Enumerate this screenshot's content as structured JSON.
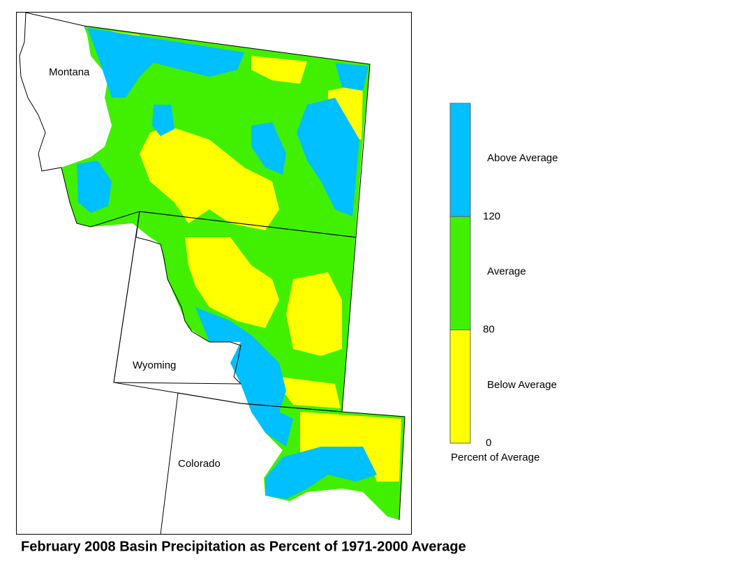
{
  "map": {
    "labels": [
      "Montana",
      "Wyoming",
      "Colorado"
    ]
  },
  "legend": {
    "bands": [
      {
        "label": "Above Average",
        "color": "#00c0ff"
      },
      {
        "label": "Average",
        "color": "#40f000"
      },
      {
        "label": "Below Average",
        "color": "#ffff00"
      }
    ],
    "ticks": [
      120,
      80,
      0
    ],
    "caption": "Percent of Average"
  },
  "title": "February 2008 Basin Precipitation as Percent of 1971-2000 Average"
}
